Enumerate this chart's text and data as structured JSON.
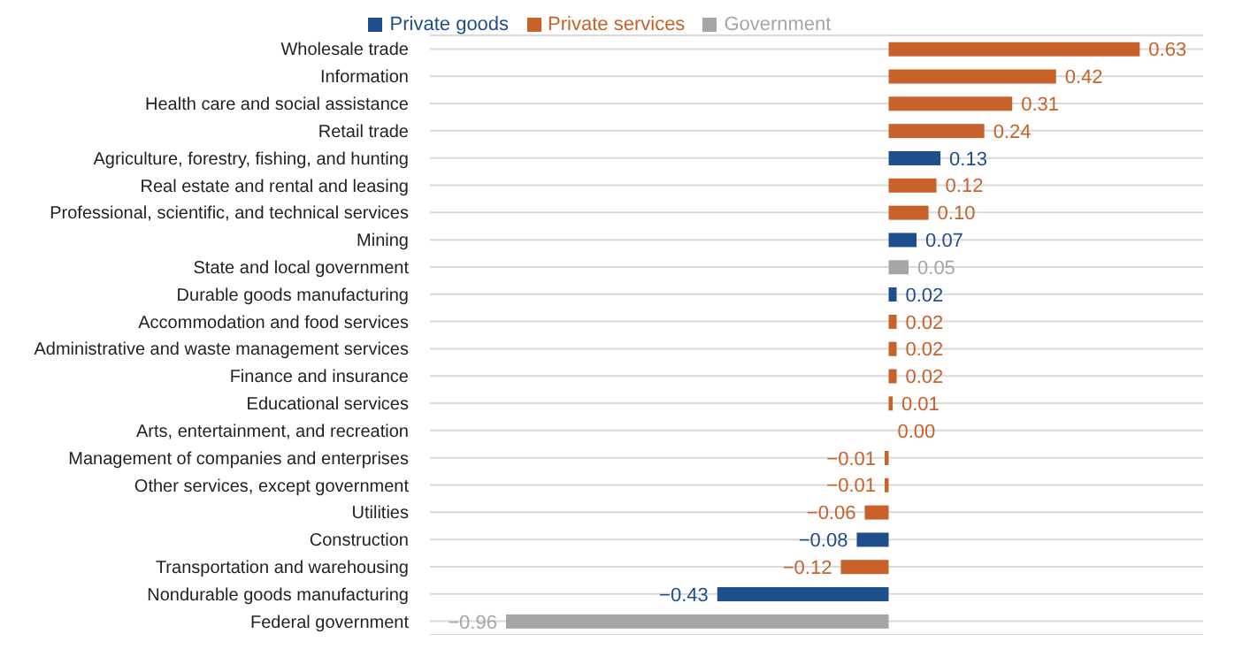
{
  "chart_data": {
    "type": "bar",
    "orientation": "horizontal",
    "stacked": true,
    "grid": "y",
    "legend": "top",
    "categories": [
      "Wholesale trade",
      "Information",
      "Health care and social assistance",
      "Retail trade",
      "Agriculture, forestry, fishing, and hunting",
      "Real estate and rental and leasing",
      "Professional, scientific, and technical services",
      "Mining",
      "State and local government",
      "Durable goods manufacturing",
      "Accommodation and food services",
      "Administrative and waste management services",
      "Finance and insurance",
      "Educational services",
      "Arts, entertainment, and recreation",
      "Management of companies and enterprises",
      "Other services, except government",
      "Utilities",
      "Construction",
      "Transportation and warehousing",
      "Nondurable goods manufacturing",
      "Federal government"
    ],
    "series": [
      {
        "name": "Private goods",
        "color": "#1f4e8c",
        "values": [
          null,
          null,
          null,
          null,
          0.13,
          null,
          null,
          0.07,
          null,
          0.02,
          null,
          null,
          null,
          null,
          null,
          null,
          null,
          null,
          -0.08,
          null,
          -0.43,
          null
        ],
        "value_labels": [
          null,
          null,
          null,
          null,
          "0.13",
          null,
          null,
          "0.07",
          null,
          "0.02",
          null,
          null,
          null,
          null,
          null,
          null,
          null,
          null,
          "−0.08",
          null,
          "−0.43",
          null
        ]
      },
      {
        "name": "Private services",
        "color": "#c8622a",
        "values": [
          0.63,
          0.42,
          0.31,
          0.24,
          null,
          0.12,
          0.1,
          null,
          null,
          null,
          0.02,
          0.02,
          0.02,
          0.01,
          0.0,
          -0.01,
          -0.01,
          -0.06,
          null,
          -0.12,
          null,
          null
        ],
        "value_labels": [
          "0.63",
          "0.42",
          "0.31",
          "0.24",
          null,
          "0.12",
          "0.10",
          null,
          null,
          null,
          "0.02",
          "0.02",
          "0.02",
          "0.01",
          "0.00",
          "−0.01",
          "−0.01",
          "−0.06",
          null,
          "−0.12",
          null,
          null
        ]
      },
      {
        "name": "Government",
        "color": "#a6a6a6",
        "values": [
          null,
          null,
          null,
          null,
          null,
          null,
          null,
          null,
          0.05,
          null,
          null,
          null,
          null,
          null,
          null,
          null,
          null,
          null,
          null,
          null,
          null,
          -0.96
        ],
        "value_labels": [
          null,
          null,
          null,
          null,
          null,
          null,
          null,
          null,
          "0.05",
          null,
          null,
          null,
          null,
          null,
          null,
          null,
          null,
          null,
          null,
          null,
          null,
          "−0.96"
        ]
      }
    ]
  }
}
